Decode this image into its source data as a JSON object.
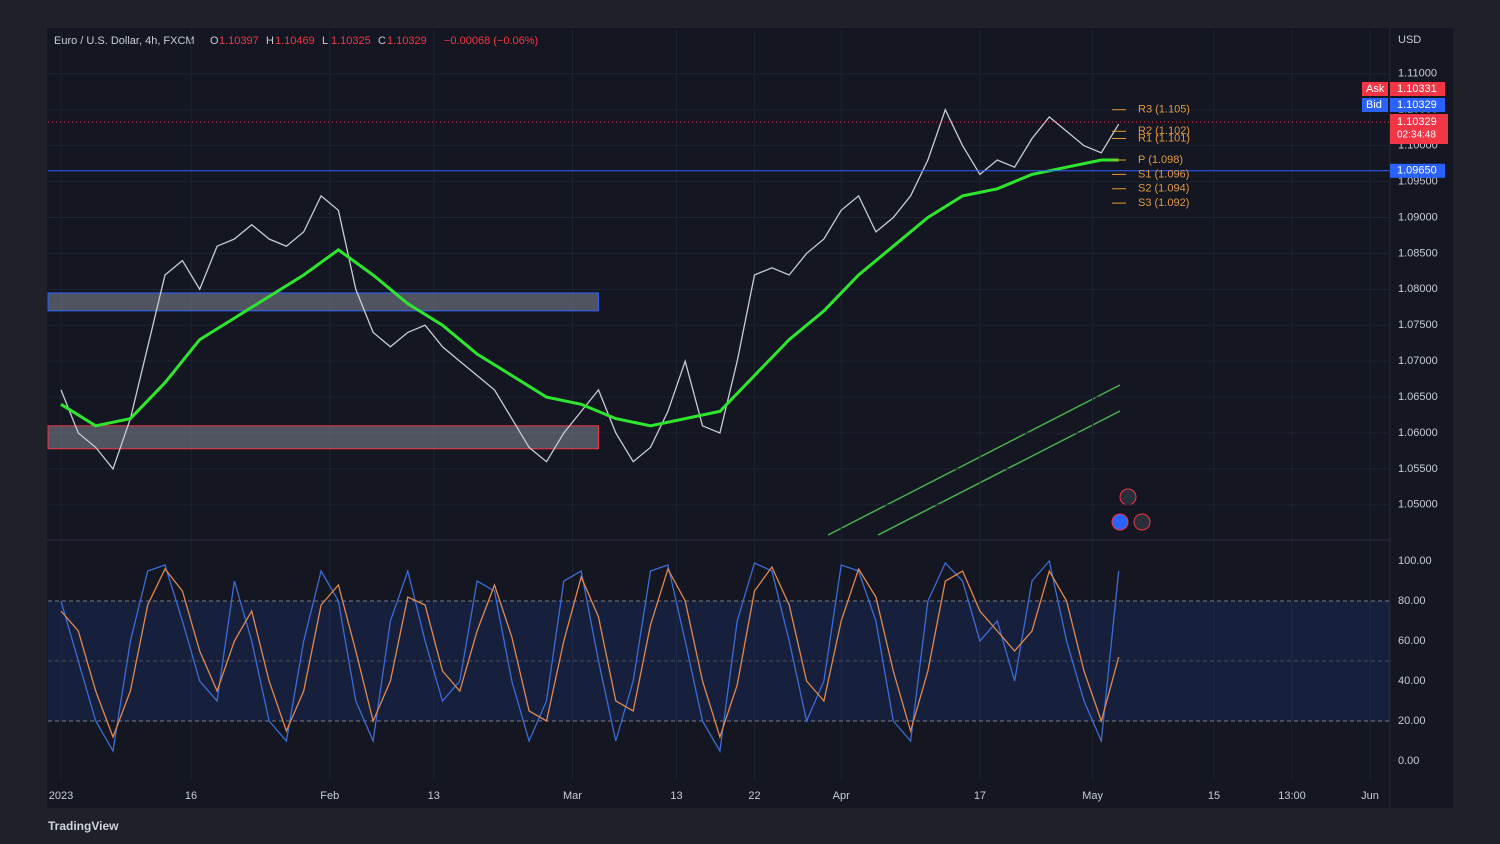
{
  "chart_data": [
    {
      "type": "line",
      "title": "Euro / U.S. Dollar, 4h, FXCM",
      "ohlc": [
        {
          "key": "O",
          "value": "1.10397"
        },
        {
          "key": "H",
          "value": "1.10469"
        },
        {
          "key": "L",
          "value": "1.10325"
        },
        {
          "key": "C",
          "value": "1.10329"
        }
      ],
      "change": "−0.00068 (−0.06%)",
      "currency": "USD",
      "xlim": [
        -1.5,
        153.3
      ],
      "xticks": [
        {
          "value": 0,
          "label": "2023"
        },
        {
          "value": 15,
          "label": "16"
        },
        {
          "value": 31,
          "label": "Feb"
        },
        {
          "value": 43,
          "label": "13"
        },
        {
          "value": 59,
          "label": "Mar"
        },
        {
          "value": 71,
          "label": "13"
        },
        {
          "value": 80,
          "label": "22"
        },
        {
          "value": 90,
          "label": "Apr"
        },
        {
          "value": 106,
          "label": "17"
        },
        {
          "value": 119,
          "label": "May"
        },
        {
          "value": 133,
          "label": "15"
        },
        {
          "value": 142,
          "label": "13:00"
        },
        {
          "value": 151,
          "label": "Jun"
        }
      ],
      "ylim": [
        1.0458,
        1.1161
      ],
      "yticks": [
        {
          "value": 1.05,
          "label": "1.05000"
        },
        {
          "value": 1.055,
          "label": "1.05500"
        },
        {
          "value": 1.06,
          "label": "1.06000"
        },
        {
          "value": 1.065,
          "label": "1.06500"
        },
        {
          "value": 1.07,
          "label": "1.07000"
        },
        {
          "value": 1.075,
          "label": "1.07500"
        },
        {
          "value": 1.08,
          "label": "1.08000"
        },
        {
          "value": 1.085,
          "label": "1.08500"
        },
        {
          "value": 1.09,
          "label": "1.09000"
        },
        {
          "value": 1.095,
          "label": "1.09500"
        },
        {
          "value": 1.1,
          "label": "1.10000"
        },
        {
          "value": 1.105,
          "label": "1.10500"
        },
        {
          "value": 1.11,
          "label": "1.11000"
        }
      ],
      "grid": true,
      "x": [
        0,
        2,
        4,
        6,
        8,
        10,
        12,
        14,
        16,
        18,
        20,
        22,
        24,
        26,
        28,
        30,
        32,
        34,
        36,
        38,
        40,
        42,
        44,
        46,
        48,
        50,
        52,
        54,
        56,
        58,
        60,
        62,
        64,
        66,
        68,
        70,
        72,
        74,
        76,
        78,
        80,
        82,
        84,
        86,
        88,
        90,
        92,
        94,
        96,
        98,
        100,
        102,
        104,
        106,
        108,
        110,
        112,
        114,
        116,
        118,
        120,
        122
      ],
      "series": [
        {
          "color": "#c8ccd4",
          "values": [
            1.066,
            1.06,
            1.058,
            1.055,
            1.062,
            1.072,
            1.082,
            1.084,
            1.08,
            1.086,
            1.087,
            1.089,
            1.087,
            1.086,
            1.088,
            1.093,
            1.091,
            1.08,
            1.074,
            1.072,
            1.074,
            1.075,
            1.072,
            1.07,
            1.068,
            1.066,
            1.062,
            1.058,
            1.056,
            1.06,
            1.063,
            1.066,
            1.06,
            1.056,
            1.058,
            1.063,
            1.07,
            1.061,
            1.06,
            1.07,
            1.082,
            1.083,
            1.082,
            1.085,
            1.087,
            1.091,
            1.093,
            1.088,
            1.09,
            1.093,
            1.098,
            1.105,
            1.1,
            1.096,
            1.098,
            1.097,
            1.101,
            1.104,
            1.102,
            1.1,
            1.099,
            1.103
          ]
        },
        {
          "color": "#2ee62e",
          "x": [
            0,
            4,
            8,
            12,
            16,
            20,
            24,
            28,
            32,
            36,
            40,
            44,
            48,
            52,
            56,
            60,
            64,
            68,
            72,
            76,
            80,
            84,
            88,
            92,
            96,
            100,
            104,
            108,
            112,
            116,
            120,
            122
          ],
          "values": [
            1.064,
            1.061,
            1.062,
            1.067,
            1.073,
            1.076,
            1.079,
            1.082,
            1.0855,
            1.082,
            1.078,
            1.075,
            1.071,
            1.068,
            1.065,
            1.064,
            1.062,
            1.061,
            1.062,
            1.063,
            1.068,
            1.073,
            1.077,
            1.082,
            1.086,
            1.09,
            1.093,
            1.094,
            1.096,
            1.097,
            1.098,
            1.098
          ]
        }
      ],
      "level_line": {
        "value": 1.0965,
        "label": "1.09650",
        "color": "#2962ff"
      },
      "last_price": {
        "value": 1.10329,
        "label": "1.10329",
        "timer": "02:34:48",
        "color": "#f23645"
      },
      "ask": {
        "key": "Ask",
        "label": "1.10331"
      },
      "bid": {
        "key": "Bid",
        "label": "1.10329"
      },
      "pivots": [
        {
          "label": "R3 (1.105)",
          "value": 1.105
        },
        {
          "label": "R2 (1.102)",
          "value": 1.102
        },
        {
          "label": "R1 (1.101)",
          "value": 1.101
        },
        {
          "label": "P (1.098)",
          "value": 1.098
        },
        {
          "label": "S1 (1.096)",
          "value": 1.096
        },
        {
          "label": "S2 (1.094)",
          "value": 1.094
        },
        {
          "label": "S3 (1.092)",
          "value": 1.092
        }
      ],
      "zones": [
        {
          "xlim": [
            -1.5,
            62
          ],
          "ylim": [
            1.077,
            1.0795
          ],
          "color": "#2962ff"
        },
        {
          "xlim": [
            -1.5,
            62
          ],
          "ylim": [
            1.0578,
            1.061
          ],
          "color": "#f23645"
        }
      ]
    },
    {
      "type": "line",
      "ylim": [
        -9.5,
        108
      ],
      "yticks": [
        {
          "value": 0,
          "label": "0.00"
        },
        {
          "value": 20,
          "label": "20.00"
        },
        {
          "value": 40,
          "label": "40.00"
        },
        {
          "value": 60,
          "label": "60.00"
        },
        {
          "value": 80,
          "label": "80.00"
        },
        {
          "value": 100,
          "label": "100.00"
        }
      ],
      "bands": [
        20,
        80
      ],
      "midline": 50,
      "x": [
        0,
        2,
        4,
        6,
        8,
        10,
        12,
        14,
        16,
        18,
        20,
        22,
        24,
        26,
        28,
        30,
        32,
        34,
        36,
        38,
        40,
        42,
        44,
        46,
        48,
        50,
        52,
        54,
        56,
        58,
        60,
        62,
        64,
        66,
        68,
        70,
        72,
        74,
        76,
        78,
        80,
        82,
        84,
        86,
        88,
        90,
        92,
        94,
        96,
        98,
        100,
        102,
        104,
        106,
        108,
        110,
        112,
        114,
        116,
        118,
        120,
        122
      ],
      "series": [
        {
          "color": "#3d6bd6",
          "values": [
            80,
            50,
            20,
            5,
            60,
            95,
            98,
            70,
            40,
            30,
            90,
            60,
            20,
            10,
            60,
            95,
            80,
            30,
            10,
            70,
            95,
            60,
            30,
            40,
            90,
            85,
            40,
            10,
            30,
            90,
            95,
            50,
            10,
            40,
            95,
            98,
            60,
            20,
            5,
            70,
            99,
            95,
            60,
            20,
            40,
            98,
            95,
            70,
            20,
            10,
            80,
            99,
            90,
            60,
            70,
            40,
            90,
            100,
            60,
            30,
            10,
            95
          ]
        },
        {
          "color": "#e0894f",
          "values": [
            75,
            65,
            35,
            12,
            35,
            78,
            96,
            85,
            55,
            35,
            60,
            75,
            40,
            15,
            35,
            78,
            88,
            55,
            20,
            40,
            82,
            78,
            45,
            35,
            65,
            88,
            62,
            25,
            20,
            60,
            92,
            72,
            30,
            25,
            68,
            96,
            80,
            40,
            12,
            38,
            85,
            97,
            78,
            40,
            30,
            70,
            96,
            82,
            45,
            15,
            45,
            90,
            95,
            75,
            65,
            55,
            65,
            95,
            80,
            45,
            20,
            52
          ]
        }
      ]
    }
  ],
  "footer": "TradingView"
}
